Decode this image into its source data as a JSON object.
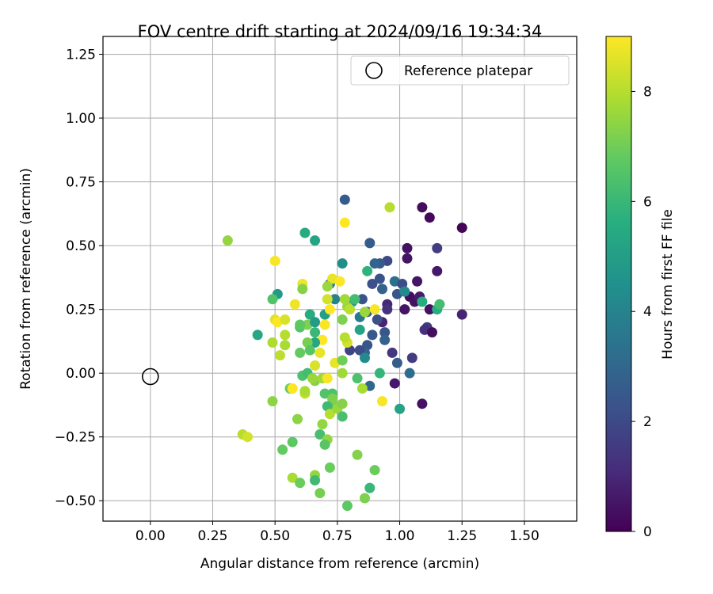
{
  "chart_data": {
    "type": "scatter",
    "title": "FOV centre drift starting at 2024/09/16 19:34:34",
    "xlabel": "Angular distance from reference (arcmin)",
    "ylabel": "Rotation from reference (arcmin)",
    "xlim": [
      -0.19,
      1.71
    ],
    "ylim": [
      -0.58,
      1.32
    ],
    "xticks": [
      "0.00",
      "0.25",
      "0.50",
      "0.75",
      "1.00",
      "1.25",
      "1.50"
    ],
    "yticks": [
      "1.25",
      "1.00",
      "0.75",
      "0.50",
      "0.25",
      "0.00",
      "−0.25",
      "−0.50"
    ],
    "grid": true,
    "legend": {
      "position": "top-right",
      "entries": [
        "Reference platepar"
      ]
    },
    "reference_point": {
      "x": 0.0,
      "y": 0.0
    },
    "colorbar": {
      "label": "Hours from first FF file",
      "colormap": "viridis",
      "range": [
        0,
        9
      ],
      "ticks": [
        "0",
        "2",
        "4",
        "6",
        "8"
      ]
    },
    "points": [
      {
        "x": 1.09,
        "y": 0.65,
        "h": 0.3
      },
      {
        "x": 1.12,
        "y": 0.61,
        "h": 0.2
      },
      {
        "x": 1.25,
        "y": 0.57,
        "h": 0.1
      },
      {
        "x": 1.03,
        "y": 0.49,
        "h": 0.4
      },
      {
        "x": 1.03,
        "y": 0.45,
        "h": 0.5
      },
      {
        "x": 1.15,
        "y": 0.49,
        "h": 1.6
      },
      {
        "x": 1.15,
        "y": 0.4,
        "h": 0.6
      },
      {
        "x": 1.07,
        "y": 0.36,
        "h": 0.5
      },
      {
        "x": 1.04,
        "y": 0.3,
        "h": 0.3
      },
      {
        "x": 1.06,
        "y": 0.28,
        "h": 0.4
      },
      {
        "x": 1.08,
        "y": 0.3,
        "h": 0.7
      },
      {
        "x": 1.02,
        "y": 0.25,
        "h": 0.5
      },
      {
        "x": 1.12,
        "y": 0.25,
        "h": 0.4
      },
      {
        "x": 1.25,
        "y": 0.23,
        "h": 0.9
      },
      {
        "x": 1.11,
        "y": 0.18,
        "h": 1.5
      },
      {
        "x": 1.1,
        "y": 0.17,
        "h": 1.2
      },
      {
        "x": 1.13,
        "y": 0.16,
        "h": 0.3
      },
      {
        "x": 1.09,
        "y": -0.12,
        "h": 0.4
      },
      {
        "x": 1.05,
        "y": 0.06,
        "h": 1.6
      },
      {
        "x": 1.04,
        "y": 0.0,
        "h": 3.2
      },
      {
        "x": 0.99,
        "y": 0.04,
        "h": 2.6
      },
      {
        "x": 0.98,
        "y": -0.04,
        "h": 0.6
      },
      {
        "x": 0.97,
        "y": 0.08,
        "h": 1.4
      },
      {
        "x": 0.95,
        "y": 0.44,
        "h": 2.0
      },
      {
        "x": 0.92,
        "y": 0.43,
        "h": 2.5
      },
      {
        "x": 0.9,
        "y": 0.43,
        "h": 2.9
      },
      {
        "x": 0.88,
        "y": 0.51,
        "h": 2.6
      },
      {
        "x": 0.78,
        "y": 0.68,
        "h": 2.6
      },
      {
        "x": 0.96,
        "y": 0.65,
        "h": 8.0
      },
      {
        "x": 0.78,
        "y": 0.59,
        "h": 9.0
      },
      {
        "x": 0.92,
        "y": 0.37,
        "h": 2.3
      },
      {
        "x": 0.89,
        "y": 0.35,
        "h": 2.2
      },
      {
        "x": 0.93,
        "y": 0.33,
        "h": 2.8
      },
      {
        "x": 0.98,
        "y": 0.36,
        "h": 3.3
      },
      {
        "x": 1.01,
        "y": 0.35,
        "h": 2.1
      },
      {
        "x": 0.99,
        "y": 0.31,
        "h": 2.4
      },
      {
        "x": 1.02,
        "y": 0.32,
        "h": 4.2
      },
      {
        "x": 0.95,
        "y": 0.27,
        "h": 1.0
      },
      {
        "x": 0.95,
        "y": 0.25,
        "h": 1.3
      },
      {
        "x": 0.93,
        "y": 0.2,
        "h": 0.9
      },
      {
        "x": 0.91,
        "y": 0.21,
        "h": 2.2
      },
      {
        "x": 0.94,
        "y": 0.16,
        "h": 2.4
      },
      {
        "x": 0.94,
        "y": 0.13,
        "h": 2.8
      },
      {
        "x": 0.89,
        "y": 0.15,
        "h": 2.5
      },
      {
        "x": 0.87,
        "y": 0.11,
        "h": 2.4
      },
      {
        "x": 0.86,
        "y": 0.08,
        "h": 2.9
      },
      {
        "x": 0.84,
        "y": 0.09,
        "h": 2.1
      },
      {
        "x": 0.8,
        "y": 0.09,
        "h": 1.8
      },
      {
        "x": 0.85,
        "y": 0.29,
        "h": 2.3
      },
      {
        "x": 0.87,
        "y": 0.24,
        "h": 2.6
      },
      {
        "x": 0.84,
        "y": 0.22,
        "h": 3.6
      },
      {
        "x": 1.09,
        "y": 0.28,
        "h": 5.5
      },
      {
        "x": 1.15,
        "y": 0.25,
        "h": 5.6
      },
      {
        "x": 1.16,
        "y": 0.27,
        "h": 6.2
      },
      {
        "x": 1.0,
        "y": -0.14,
        "h": 5.2
      },
      {
        "x": 0.92,
        "y": 0.0,
        "h": 5.9
      },
      {
        "x": 0.88,
        "y": -0.05,
        "h": 3.0
      },
      {
        "x": 0.86,
        "y": 0.06,
        "h": 4.3
      },
      {
        "x": 0.84,
        "y": 0.17,
        "h": 5.2
      },
      {
        "x": 0.81,
        "y": 0.28,
        "h": 4.8
      },
      {
        "x": 0.77,
        "y": 0.43,
        "h": 4.4
      },
      {
        "x": 0.87,
        "y": 0.4,
        "h": 5.8
      },
      {
        "x": 0.74,
        "y": 0.29,
        "h": 4.0
      },
      {
        "x": 0.72,
        "y": 0.35,
        "h": 3.8
      },
      {
        "x": 0.73,
        "y": 0.37,
        "h": 8.7
      },
      {
        "x": 0.76,
        "y": 0.36,
        "h": 9.0
      },
      {
        "x": 0.66,
        "y": 0.52,
        "h": 5.2
      },
      {
        "x": 0.62,
        "y": 0.55,
        "h": 5.5
      },
      {
        "x": 0.51,
        "y": 0.31,
        "h": 4.8
      },
      {
        "x": 0.43,
        "y": 0.15,
        "h": 5.3
      },
      {
        "x": 0.49,
        "y": 0.29,
        "h": 6.5
      },
      {
        "x": 0.5,
        "y": 0.44,
        "h": 8.9
      },
      {
        "x": 0.61,
        "y": 0.35,
        "h": 8.8
      },
      {
        "x": 0.58,
        "y": 0.27,
        "h": 8.8
      },
      {
        "x": 0.61,
        "y": 0.33,
        "h": 7.3
      },
      {
        "x": 0.31,
        "y": 0.52,
        "h": 7.5
      },
      {
        "x": 0.5,
        "y": 0.21,
        "h": 8.6
      },
      {
        "x": 0.51,
        "y": 0.2,
        "h": 9.0
      },
      {
        "x": 0.54,
        "y": 0.21,
        "h": 8.5
      },
      {
        "x": 0.54,
        "y": 0.15,
        "h": 8.0
      },
      {
        "x": 0.54,
        "y": 0.11,
        "h": 7.8
      },
      {
        "x": 0.52,
        "y": 0.07,
        "h": 8.1
      },
      {
        "x": 0.49,
        "y": 0.12,
        "h": 7.9
      },
      {
        "x": 0.6,
        "y": 0.18,
        "h": 6.5
      },
      {
        "x": 0.63,
        "y": 0.19,
        "h": 7.2
      },
      {
        "x": 0.64,
        "y": 0.23,
        "h": 5.5
      },
      {
        "x": 0.66,
        "y": 0.2,
        "h": 4.9
      },
      {
        "x": 0.7,
        "y": 0.23,
        "h": 5.0
      },
      {
        "x": 0.7,
        "y": 0.19,
        "h": 8.9
      },
      {
        "x": 0.72,
        "y": 0.25,
        "h": 9.0
      },
      {
        "x": 0.71,
        "y": 0.29,
        "h": 8.4
      },
      {
        "x": 0.71,
        "y": 0.34,
        "h": 7.6
      },
      {
        "x": 0.69,
        "y": 0.13,
        "h": 9.0
      },
      {
        "x": 0.66,
        "y": 0.16,
        "h": 6.0
      },
      {
        "x": 0.66,
        "y": 0.12,
        "h": 5.3
      },
      {
        "x": 0.63,
        "y": 0.12,
        "h": 7.1
      },
      {
        "x": 0.6,
        "y": 0.08,
        "h": 6.8
      },
      {
        "x": 0.68,
        "y": 0.08,
        "h": 8.7
      },
      {
        "x": 0.64,
        "y": 0.09,
        "h": 6.6
      },
      {
        "x": 0.66,
        "y": 0.03,
        "h": 8.5
      },
      {
        "x": 0.61,
        "y": -0.01,
        "h": 6.4
      },
      {
        "x": 0.63,
        "y": 0.0,
        "h": 6.2
      },
      {
        "x": 0.66,
        "y": -0.03,
        "h": 7.3
      },
      {
        "x": 0.69,
        "y": -0.02,
        "h": 7.7
      },
      {
        "x": 0.71,
        "y": -0.02,
        "h": 8.9
      },
      {
        "x": 0.74,
        "y": 0.04,
        "h": 8.7
      },
      {
        "x": 0.77,
        "y": 0.05,
        "h": 7.0
      },
      {
        "x": 0.77,
        "y": 0.0,
        "h": 7.7
      },
      {
        "x": 0.79,
        "y": 0.12,
        "h": 8.4
      },
      {
        "x": 0.78,
        "y": 0.14,
        "h": 8.0
      },
      {
        "x": 0.79,
        "y": 0.26,
        "h": 7.6
      },
      {
        "x": 0.77,
        "y": 0.21,
        "h": 7.2
      },
      {
        "x": 0.8,
        "y": 0.25,
        "h": 8.1
      },
      {
        "x": 0.78,
        "y": 0.29,
        "h": 7.7
      },
      {
        "x": 0.82,
        "y": 0.29,
        "h": 6.2
      },
      {
        "x": 0.86,
        "y": 0.24,
        "h": 7.6
      },
      {
        "x": 0.9,
        "y": 0.25,
        "h": 8.9
      },
      {
        "x": 0.6,
        "y": 0.19,
        "h": 6.7
      },
      {
        "x": 0.56,
        "y": -0.06,
        "h": 6.9
      },
      {
        "x": 0.57,
        "y": -0.06,
        "h": 9.0
      },
      {
        "x": 0.62,
        "y": -0.08,
        "h": 8.2
      },
      {
        "x": 0.62,
        "y": -0.07,
        "h": 7.8
      },
      {
        "x": 0.49,
        "y": -0.11,
        "h": 7.4
      },
      {
        "x": 0.65,
        "y": -0.02,
        "h": 7.6
      },
      {
        "x": 0.7,
        "y": -0.08,
        "h": 6.5
      },
      {
        "x": 0.73,
        "y": -0.08,
        "h": 6.4
      },
      {
        "x": 0.73,
        "y": -0.1,
        "h": 7.2
      },
      {
        "x": 0.74,
        "y": -0.13,
        "h": 7.2
      },
      {
        "x": 0.71,
        "y": -0.13,
        "h": 6.1
      },
      {
        "x": 0.72,
        "y": -0.16,
        "h": 8.0
      },
      {
        "x": 0.75,
        "y": -0.14,
        "h": 7.6
      },
      {
        "x": 0.77,
        "y": -0.17,
        "h": 6.3
      },
      {
        "x": 0.77,
        "y": -0.12,
        "h": 7.3
      },
      {
        "x": 0.83,
        "y": -0.02,
        "h": 6.4
      },
      {
        "x": 0.85,
        "y": -0.06,
        "h": 7.8
      },
      {
        "x": 0.93,
        "y": -0.11,
        "h": 8.9
      },
      {
        "x": 0.69,
        "y": -0.2,
        "h": 7.5
      },
      {
        "x": 0.68,
        "y": -0.24,
        "h": 6.3
      },
      {
        "x": 0.71,
        "y": -0.26,
        "h": 7.5
      },
      {
        "x": 0.7,
        "y": -0.28,
        "h": 6.6
      },
      {
        "x": 0.59,
        "y": -0.18,
        "h": 7.4
      },
      {
        "x": 0.57,
        "y": -0.27,
        "h": 6.7
      },
      {
        "x": 0.53,
        "y": -0.3,
        "h": 6.8
      },
      {
        "x": 0.37,
        "y": -0.24,
        "h": 8.0
      },
      {
        "x": 0.39,
        "y": -0.25,
        "h": 8.4
      },
      {
        "x": 0.72,
        "y": -0.37,
        "h": 6.9
      },
      {
        "x": 0.66,
        "y": -0.4,
        "h": 7.5
      },
      {
        "x": 0.66,
        "y": -0.42,
        "h": 6.1
      },
      {
        "x": 0.57,
        "y": -0.41,
        "h": 7.8
      },
      {
        "x": 0.6,
        "y": -0.43,
        "h": 6.9
      },
      {
        "x": 0.68,
        "y": -0.47,
        "h": 7.1
      },
      {
        "x": 0.79,
        "y": -0.52,
        "h": 6.7
      },
      {
        "x": 0.86,
        "y": -0.49,
        "h": 7.2
      },
      {
        "x": 0.88,
        "y": -0.45,
        "h": 6.0
      },
      {
        "x": 0.9,
        "y": -0.38,
        "h": 6.9
      },
      {
        "x": 0.83,
        "y": -0.32,
        "h": 7.3
      }
    ]
  }
}
